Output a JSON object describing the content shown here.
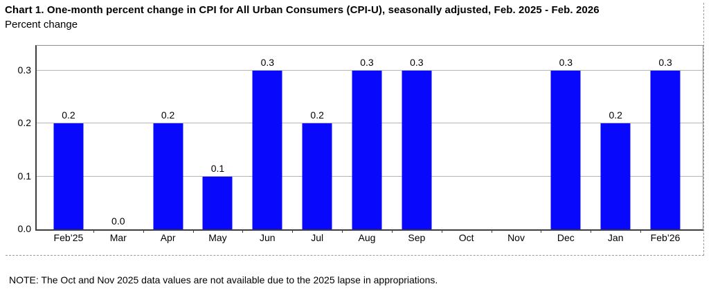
{
  "header": {
    "title": "Chart 1. One-month percent change in CPI for All Urban Consumers (CPI-U), seasonally adjusted, Feb. 2025 - Feb. 2026",
    "subtitle": "Percent change"
  },
  "chart_data": {
    "type": "bar",
    "title": "Chart 1. One-month percent change in CPI for All Urban Consumers (CPI-U), seasonally adjusted, Feb. 2025 - Feb. 2026",
    "ylabel": "Percent change",
    "xlabel": "",
    "categories": [
      "Feb’25",
      "Mar",
      "Apr",
      "May",
      "Jun",
      "Jul",
      "Aug",
      "Sep",
      "Oct",
      "Nov",
      "Dec",
      "Jan",
      "Feb’26"
    ],
    "values": [
      0.2,
      0.0,
      0.2,
      0.1,
      0.3,
      0.2,
      0.3,
      0.3,
      null,
      null,
      0.3,
      0.2,
      0.3
    ],
    "value_labels": [
      "0.2",
      "0.0",
      "0.2",
      "0.1",
      "0.3",
      "0.2",
      "0.3",
      "0.3",
      "",
      "",
      "0.3",
      "0.2",
      "0.3"
    ],
    "missing_categories": [
      "Oct",
      "Nov"
    ],
    "ytick_labels": [
      "0.0",
      "0.1",
      "0.2",
      "0.3"
    ],
    "yticks": [
      0.0,
      0.1,
      0.2,
      0.3
    ],
    "ylim": [
      0,
      0.3465
    ],
    "grid": true,
    "legend": "none",
    "bar_color": "#0808fd"
  },
  "note": "NOTE: The Oct and Nov 2025 data values are not available due to the 2025 lapse in appropriations.",
  "colors": {
    "bar": "#0808fd",
    "gridline": "#b5b5b5",
    "axis_dark": "#3d3d3d",
    "frame_gray": "#8e8e8e",
    "divider_dashed": "#9a9a9a",
    "background": "#ffffff",
    "text": "#000000"
  }
}
